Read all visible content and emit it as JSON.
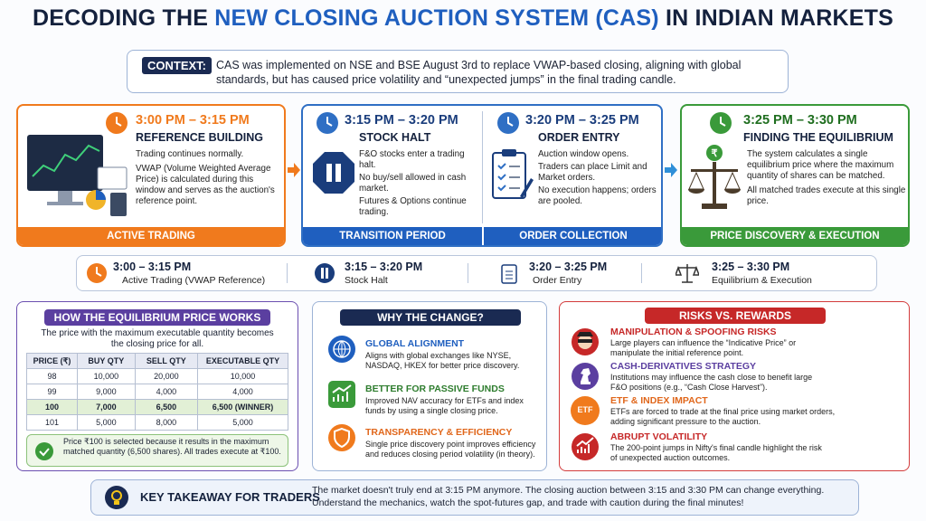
{
  "header": {
    "title_start": "DECODING THE",
    "title_highlight": "NEW CLOSING AUCTION SYSTEM (CAS)",
    "title_end": "IN INDIAN MARKETS"
  },
  "context": {
    "label": "CONTEXT:",
    "text": "CAS was implemented on NSE and BSE August 3rd to replace VWAP-based closing, aligning with global standards, but has caused price volatility and “unexpected jumps” in the final trading candle."
  },
  "phases": [
    {
      "time": "3:00 PM – 3:15 PM",
      "title": "REFERENCE BUILDING",
      "lines": [
        "Trading continues normally.",
        "VWAP (Volume Weighted Average Price) is calculated during this window and serves as the auction's reference point."
      ],
      "footer": "ACTIVE TRADING"
    },
    {
      "time": "3:15 PM – 3:20 PM",
      "title": "STOCK HALT",
      "lines": [
        "F&O stocks enter a trading halt.",
        "No buy/sell allowed in cash market.",
        "Futures & Options continue trading."
      ],
      "footer": "TRANSITION PERIOD"
    },
    {
      "time": "3:20 PM – 3:25 PM",
      "title": "ORDER ENTRY",
      "lines": [
        "Auction window opens.",
        "Traders can place Limit and Market orders.",
        "No execution happens; orders are pooled."
      ],
      "footer": "ORDER COLLECTION"
    },
    {
      "time": "3:25 PM – 3:30 PM",
      "title": "FINDING THE EQUILIBRIUM",
      "lines": [
        "The system calculates a single equilibrium price where the maximum quantity of shares can be matched.",
        "All matched trades execute at this single price."
      ],
      "footer": "PRICE DISCOVERY & EXECUTION"
    }
  ],
  "timeline": [
    {
      "time": "3:00 – 3:15 PM",
      "label": "Active Trading (VWAP Reference)"
    },
    {
      "time": "3:15 – 3:20 PM",
      "label": "Stock Halt"
    },
    {
      "time": "3:20 – 3:25 PM",
      "label": "Order Entry"
    },
    {
      "time": "3:25 – 3:30 PM",
      "label": "Equilibrium & Execution"
    }
  ],
  "equilibrium": {
    "title": "HOW THE EQUILIBRIUM PRICE WORKS",
    "intro": "The price with the maximum executable quantity becomes the closing price for all.",
    "table": {
      "headers": [
        "PRICE (₹)",
        "BUY QTY",
        "SELL QTY",
        "EXECUTABLE QTY"
      ],
      "rows": [
        [
          "98",
          "10,000",
          "20,000",
          "10,000"
        ],
        [
          "99",
          "9,000",
          "4,000",
          "4,000"
        ],
        [
          "100",
          "7,000",
          "6,500",
          "6,500 (WINNER)"
        ],
        [
          "101",
          "5,000",
          "8,000",
          "5,000"
        ]
      ]
    },
    "note": "Price ₹100 is selected because it results in the maximum matched quantity (6,500 shares).",
    "note_end": "All trades execute at ₹100."
  },
  "why": {
    "title": "WHY THE CHANGE?",
    "items": [
      {
        "title": "GLOBAL ALIGNMENT",
        "text": "Aligns with global exchanges like NYSE, NASDAQ, HKEX for better price discovery."
      },
      {
        "title": "BETTER FOR PASSIVE FUNDS",
        "text": "Improved NAV accuracy for ETFs and index funds by using a single closing price."
      },
      {
        "title": "TRANSPARENCY & EFFICIENCY",
        "text": "Single price discovery point improves efficiency and reduces closing period volatility (in theory)."
      }
    ]
  },
  "risks": {
    "title": "RISKS VS. REWARDS",
    "items": [
      {
        "title": "MANIPULATION & SPOOFING RISKS",
        "text": "Large players can influence the “Indicative Price” or manipulate the initial reference point."
      },
      {
        "title": "CASH-DERIVATIVES STRATEGY",
        "text": "Institutions may influence the cash close to benefit large F&O positions (e.g., “Cash Close Harvest”)."
      },
      {
        "title": "ETF & INDEX IMPACT",
        "text": "ETFs are forced to trade at the final price using market orders, adding significant pressure to the auction.",
        "icon_text": "ETF"
      },
      {
        "title": "ABRUPT VOLATILITY",
        "text": "The 200-point jumps in Nifty's final candle highlight the risk of unexpected auction outcomes."
      }
    ]
  },
  "takeaway": {
    "title": "KEY TAKEAWAY FOR TRADERS",
    "text": "The market doesn't truly end at 3:15 PM anymore. The closing auction between 3:15 and 3:30 PM can change everything. Understand the mechanics, watch the spot-futures gap, and trade with caution during the final minutes!"
  }
}
